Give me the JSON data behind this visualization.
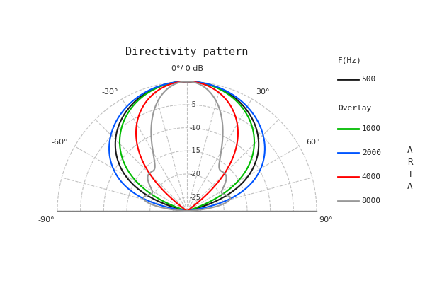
{
  "title": "Directivity pattern",
  "center_label": "0°/ 0 dB",
  "r_max": 0,
  "r_min": -28,
  "r_tick_vals": [
    0,
    -5,
    -10,
    -15,
    -20,
    -25
  ],
  "db_labels": [
    -5,
    -10,
    -15,
    -20,
    -25
  ],
  "angle_grid_lines": [
    -90,
    -75,
    -60,
    -45,
    -30,
    -15,
    0,
    15,
    30,
    45,
    60,
    75,
    90
  ],
  "background_color": "#ffffff",
  "grid_color": "#c0c0c0",
  "baseline_color": "#808080",
  "title_fontsize": 11,
  "label_fontsize": 8,
  "db_label_fontsize": 7,
  "series": [
    {
      "label": "500",
      "color": "#1a1a1a",
      "linewidth": 1.5,
      "bw": 85,
      "rolloff": 1.8,
      "wavy": false
    },
    {
      "label": "1000",
      "color": "#00bb00",
      "linewidth": 1.5,
      "bw": 82,
      "rolloff": 2.0,
      "wavy": false
    },
    {
      "label": "2000",
      "color": "#0055ff",
      "linewidth": 1.5,
      "bw": 88,
      "rolloff": 1.5,
      "wavy": false
    },
    {
      "label": "4000",
      "color": "#ff0000",
      "linewidth": 1.5,
      "bw": 65,
      "rolloff": 2.5,
      "wavy": false
    },
    {
      "label": "8000",
      "color": "#999999",
      "linewidth": 1.5,
      "bw": 45,
      "rolloff": 3.0,
      "wavy": true
    }
  ],
  "legend_title1": "F(Hz)",
  "legend_title2": "Overlay",
  "arta_text": "A\nR\nT\nA",
  "angle_labels": {
    "-90": "-90°",
    "-60": "-60°",
    "-30": "-30°",
    "30": "30°",
    "60": "60°",
    "90": "90°"
  }
}
